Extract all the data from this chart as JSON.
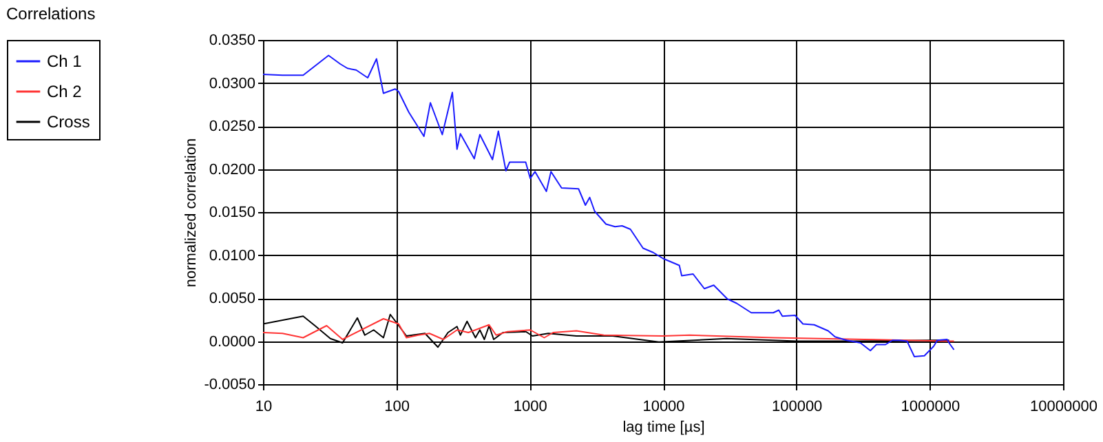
{
  "chart_data": {
    "type": "line",
    "title": "Correlations",
    "xlabel": "lag time [µs]",
    "ylabel": "normalized correlation",
    "log": "x",
    "grid": true,
    "legend": "left",
    "line_style": "solid",
    "marker": "none",
    "xlim": [
      10,
      10000000
    ],
    "xticks": [
      10,
      100,
      1000,
      10000,
      100000,
      1000000,
      10000000
    ],
    "ylim": [
      -0.005,
      0.035
    ],
    "yticks": [
      {
        "value": -0.005,
        "label": "-0.0050"
      },
      {
        "value": 0,
        "label": "0.0000"
      },
      {
        "value": 0.005,
        "label": "0.0050"
      },
      {
        "value": 0.01,
        "label": "0.0100"
      },
      {
        "value": 0.015,
        "label": "0.0150"
      },
      {
        "value": 0.02,
        "label": "0.0200"
      },
      {
        "value": 0.025,
        "label": "0.0250"
      },
      {
        "value": 0.03,
        "label": "0.0300"
      },
      {
        "value": 0.035,
        "label": "0.0350"
      }
    ],
    "series": [
      {
        "name": "Ch 1",
        "color": "#1a1aff",
        "x": [
          10,
          14,
          20,
          31,
          38,
          43,
          50,
          61,
          71,
          80,
          98,
          104,
          124,
          161,
          180,
          221,
          263,
          285,
          302,
          384,
          423,
          526,
          582,
          663,
          707,
          933,
          1010,
          1096,
          1334,
          1444,
          1734,
          2324,
          2617,
          2818,
          3069,
          3733,
          4365,
          4930,
          5690,
          7080,
          8440,
          10000,
          13250,
          13800,
          16800,
          20400,
          24000,
          30400,
          35600,
          45900,
          67100,
          73800,
          78500,
          97800,
          112000,
          136000,
          173000,
          195000,
          238000,
          302000,
          359000,
          398000,
          466000,
          525000,
          590000,
          676000,
          767000,
          912000,
          1070000,
          1140000,
          1350000,
          1410000,
          1520000
        ],
        "values": [
          0.031,
          0.0309,
          0.0309,
          0.0332,
          0.0322,
          0.0317,
          0.0315,
          0.0306,
          0.0328,
          0.0288,
          0.0293,
          0.029,
          0.0266,
          0.0238,
          0.0277,
          0.024,
          0.0289,
          0.0223,
          0.0241,
          0.0212,
          0.024,
          0.0211,
          0.0244,
          0.0198,
          0.0208,
          0.0208,
          0.0189,
          0.0197,
          0.0174,
          0.0197,
          0.0178,
          0.0177,
          0.0158,
          0.0167,
          0.0151,
          0.0136,
          0.0133,
          0.0134,
          0.013,
          0.0108,
          0.0103,
          0.0096,
          0.0088,
          0.0076,
          0.0078,
          0.0061,
          0.0065,
          0.0049,
          0.0044,
          0.0033,
          0.0033,
          0.0036,
          0.0029,
          0.003,
          0.002,
          0.0019,
          0.0012,
          0.0005,
          0.0001,
          -0.0002,
          -0.0011,
          -0.0004,
          -0.0004,
          0.0001,
          0.0001,
          0,
          -0.0018,
          -0.0017,
          -0.0006,
          0.0001,
          0.0002,
          -0.0003,
          -0.001
        ]
      },
      {
        "name": "Ch 2",
        "color": "#ff3333",
        "x": [
          10,
          14,
          20,
          30,
          39.5,
          80,
          104,
          119,
          146,
          177,
          225,
          285,
          347,
          407,
          496,
          560,
          680,
          1010,
          1285,
          1500,
          2240,
          3590,
          10000,
          15800,
          67100,
          324000,
          1350000,
          1520000
        ],
        "values": [
          0.001,
          0.0009,
          0.0004,
          0.0018,
          0.0002,
          0.0026,
          0.002,
          0.0004,
          0.0007,
          0.0009,
          0.0002,
          0.0013,
          0.001,
          0.0014,
          0.0019,
          0.0007,
          0.0011,
          0.0013,
          0.0004,
          0.001,
          0.0012,
          0.0007,
          0.0006,
          0.0007,
          0.0004,
          0.0002,
          0,
          0
        ]
      },
      {
        "name": "Cross",
        "color": "#000000",
        "x": [
          10,
          20,
          24.5,
          32,
          39.5,
          51,
          58,
          67.6,
          80,
          90,
          102,
          119,
          164,
          205,
          244,
          285,
          302,
          339,
          392,
          423,
          457,
          496,
          537,
          630,
          937,
          1050,
          1380,
          2240,
          4200,
          9300,
          30000,
          100000,
          300000,
          1000000,
          1400000
        ],
        "values": [
          0.002,
          0.0029,
          0.0018,
          0.0003,
          -0.0002,
          0.0027,
          0.0007,
          0.0013,
          0.0004,
          0.0031,
          0.002,
          0.0006,
          0.0009,
          -0.0007,
          0.001,
          0.0017,
          0.0007,
          0.0023,
          0.0004,
          0.0013,
          0.0002,
          0.0018,
          0.0002,
          0.001,
          0.0011,
          0.0006,
          0.0009,
          0.0006,
          0.0006,
          -0.0001,
          0.0003,
          0,
          0,
          0.0001,
          0.0001
        ]
      }
    ]
  }
}
